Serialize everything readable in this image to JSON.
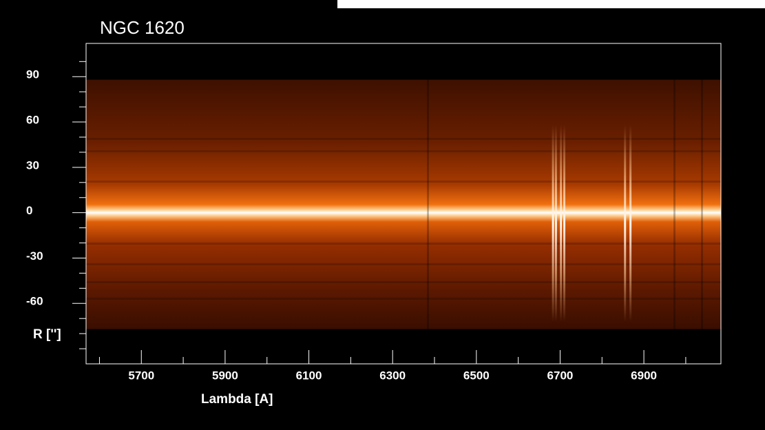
{
  "chart_data": {
    "type": "spectrum-image",
    "title": "NGC 1620",
    "x_label": "Lambda [A]",
    "y_label": "R ['']",
    "xlim": [
      5568,
      7084
    ],
    "ylim": [
      -100,
      112
    ],
    "xticks": [
      5700,
      5900,
      6100,
      6300,
      6500,
      6700,
      6900
    ],
    "yticks": [
      90,
      60,
      30,
      0,
      -30,
      -60
    ],
    "x_minor_ticks": [
      5600,
      5800,
      6000,
      6200,
      6400,
      6600,
      6800,
      7000
    ],
    "y_minor_ticks": [
      100,
      80,
      70,
      50,
      40,
      20,
      10,
      -10,
      -20,
      -40,
      -50,
      -70,
      -80,
      -90
    ],
    "image_r_range": [
      -77,
      88
    ],
    "emission_lines": [
      6683,
      6690,
      6702,
      6710,
      6855,
      6868
    ]
  }
}
